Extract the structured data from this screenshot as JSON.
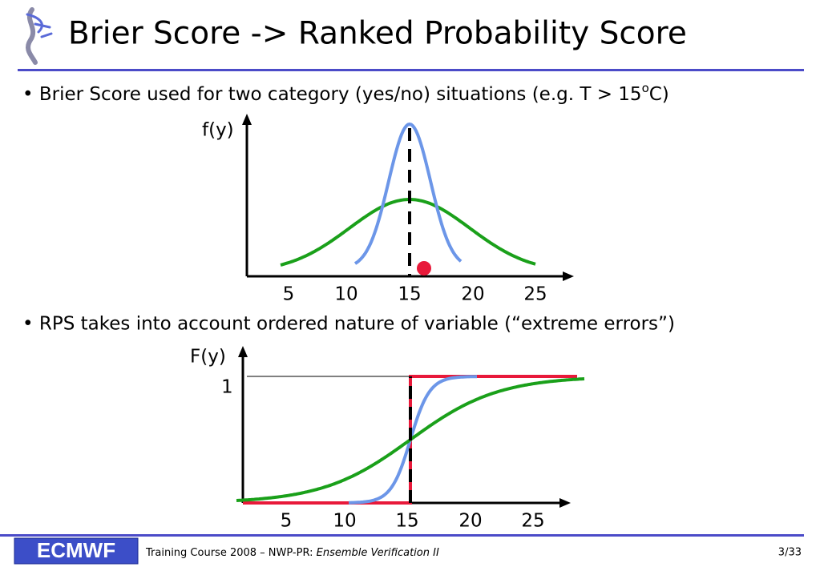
{
  "header": {
    "title": "Brier Score -> Ranked Probability Score"
  },
  "bullets": [
    {
      "text": "• Brier Score used for two category (yes/no) situations (e.g. T > 15",
      "sup": "o",
      "after": "C)"
    },
    {
      "text": "• RPS takes into account ordered nature of variable (“extreme errors”)"
    }
  ],
  "pdf_chart": {
    "ylabel": "f(y)",
    "ticks": [
      5,
      10,
      15,
      20,
      25
    ]
  },
  "cdf_chart": {
    "ylabel": "F(y)",
    "ymax_label": 1,
    "ticks": [
      5,
      10,
      15,
      20,
      25
    ]
  },
  "footer": {
    "logo": "ECMWF",
    "text": "Training Course 2008 – NWP-PR: ",
    "italic": "Ensemble Verification II",
    "page": "3/33"
  }
}
